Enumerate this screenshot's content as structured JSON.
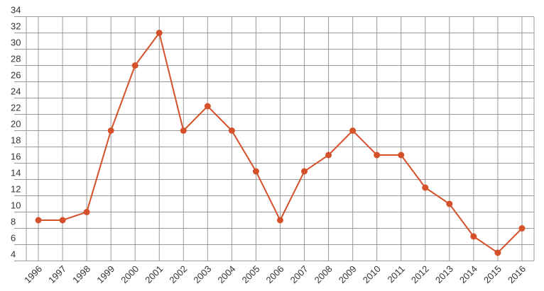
{
  "chart_data": {
    "type": "line",
    "categories": [
      "1996",
      "1997",
      "1998",
      "1999",
      "2000",
      "2001",
      "2002",
      "2003",
      "2004",
      "2005",
      "2006",
      "2007",
      "2008",
      "2009",
      "2010",
      "2011",
      "2012",
      "2013",
      "2014",
      "2015",
      "2016"
    ],
    "values": [
      9,
      9,
      10,
      20,
      28,
      32,
      20,
      23,
      20,
      15,
      9,
      15,
      17,
      20,
      17,
      17,
      13,
      11,
      7,
      5,
      8
    ],
    "color": "#d5512b",
    "ylim": [
      4,
      34
    ],
    "yticks": [
      4,
      6,
      8,
      10,
      12,
      14,
      16,
      18,
      20,
      22,
      24,
      26,
      28,
      30,
      32,
      34
    ],
    "grid": true
  }
}
